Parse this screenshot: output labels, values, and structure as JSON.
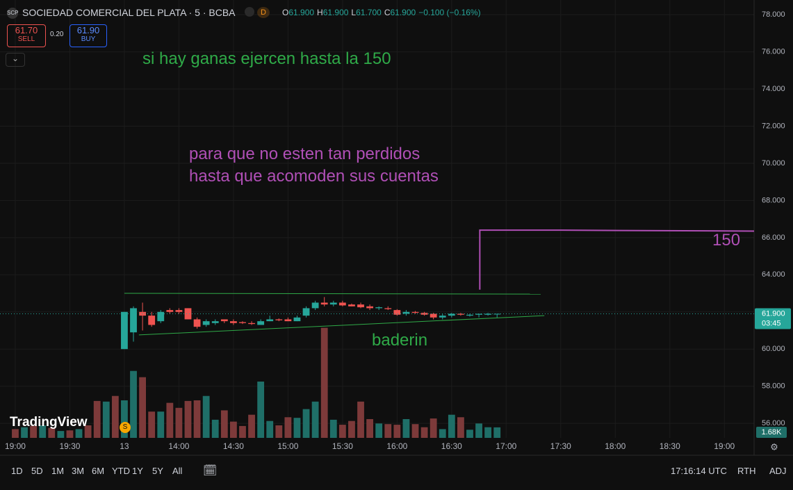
{
  "header": {
    "logo": "SCP",
    "title": "SOCIEDAD COMERCIAL DEL PLATA · 5 · BCBA",
    "badge": "D",
    "ohlc": [
      {
        "label": "O",
        "value": "61.900"
      },
      {
        "label": "H",
        "value": "61.900"
      },
      {
        "label": "L",
        "value": "61.700"
      },
      {
        "label": "C",
        "value": "61.900"
      }
    ],
    "change": "−0.100 (−0.16%)",
    "sell_price": "61.70",
    "sell_label": "SELL",
    "spread": "0.20",
    "buy_price": "61.90",
    "buy_label": "BUY",
    "brand": "TradingView",
    "event": "S"
  },
  "annotations": [
    "si hay ganas ejercen hasta la 150",
    "para que no esten tan perdidos",
    "hasta que acomoden sus cuentas",
    "150",
    "baderin"
  ],
  "toolbar": {
    "ranges": [
      "1D",
      "5D",
      "1M",
      "3M",
      "6M",
      "YTD",
      "1Y",
      "5Y",
      "All"
    ],
    "clock": "17:16:14 UTC",
    "session": "RTH",
    "adjust": "ADJ"
  },
  "chart_data": {
    "type": "candlestick",
    "grid": true,
    "xlim": [
      -1.68,
      81.27
    ],
    "xticks": [
      {
        "value": 0,
        "label": "19:00"
      },
      {
        "value": 6,
        "label": "19:30"
      },
      {
        "value": 12,
        "label": "13"
      },
      {
        "value": 18,
        "label": "14:00"
      },
      {
        "value": 24,
        "label": "14:30"
      },
      {
        "value": 30,
        "label": "15:00"
      },
      {
        "value": 36,
        "label": "15:30"
      },
      {
        "value": 42,
        "label": "16:00"
      },
      {
        "value": 48,
        "label": "16:30"
      },
      {
        "value": 54,
        "label": "17:00"
      },
      {
        "value": 60,
        "label": "17:30"
      },
      {
        "value": 66,
        "label": "18:00"
      },
      {
        "value": 72,
        "label": "18:30"
      },
      {
        "value": 78,
        "label": "19:00"
      }
    ],
    "ylim": [
      55.22,
      78.79
    ],
    "yticks": [
      {
        "value": 78,
        "label": "78.000"
      },
      {
        "value": 76,
        "label": "76.000"
      },
      {
        "value": 74,
        "label": "74.000"
      },
      {
        "value": 72,
        "label": "72.000"
      },
      {
        "value": 70,
        "label": "70.000"
      },
      {
        "value": 68,
        "label": "68.000"
      },
      {
        "value": 66,
        "label": "66.000"
      },
      {
        "value": 64,
        "label": "64.000"
      },
      {
        "value": 62,
        "label": "62.000"
      },
      {
        "value": 60,
        "label": "60.000"
      },
      {
        "value": 58,
        "label": "58.000"
      },
      {
        "value": 56,
        "label": "56.000"
      }
    ],
    "up_color": "#26a69a",
    "down_color": "#ef5350",
    "series": [
      {
        "open": [
          null,
          null,
          null,
          null,
          null,
          null,
          null,
          null,
          null,
          null,
          null,
          null,
          60.0,
          60.9,
          62.0,
          61.8,
          61.5,
          62.1,
          62.1,
          62.2,
          61.6,
          61.3,
          61.4,
          61.6,
          61.5,
          61.45,
          61.4,
          61.3,
          61.5,
          61.6,
          61.6,
          61.5,
          61.8,
          62.2,
          62.5,
          62.4,
          62.5,
          62.4,
          62.4,
          62.3,
          62.2,
          62.2,
          62.1,
          61.9,
          62.0,
          61.95,
          61.9,
          61.7,
          61.8,
          61.9,
          61.8,
          61.85,
          61.85,
          61.9
        ],
        "high": [
          null,
          null,
          null,
          null,
          null,
          null,
          null,
          null,
          null,
          null,
          null,
          null,
          62.0,
          62.3,
          62.5,
          62.0,
          62.1,
          62.2,
          62.2,
          62.2,
          61.7,
          61.6,
          61.6,
          61.6,
          61.6,
          61.5,
          61.5,
          61.6,
          61.8,
          61.65,
          61.7,
          61.8,
          62.3,
          62.6,
          62.8,
          62.6,
          62.6,
          62.45,
          62.5,
          62.4,
          62.3,
          62.3,
          62.15,
          62.1,
          62.05,
          62.0,
          61.95,
          61.9,
          61.95,
          61.95,
          61.9,
          61.9,
          61.95,
          61.9
        ],
        "low": [
          null,
          null,
          null,
          null,
          null,
          null,
          null,
          null,
          null,
          null,
          null,
          null,
          60.0,
          60.4,
          61.0,
          61.2,
          61.4,
          61.9,
          61.9,
          61.6,
          61.1,
          61.2,
          61.3,
          61.4,
          61.3,
          61.35,
          61.3,
          61.3,
          61.5,
          61.5,
          61.5,
          61.5,
          61.7,
          62.1,
          62.3,
          62.3,
          62.3,
          62.3,
          62.2,
          62.1,
          62.1,
          62.1,
          61.8,
          61.8,
          61.9,
          61.8,
          61.6,
          61.6,
          61.7,
          61.8,
          61.75,
          61.7,
          61.8,
          61.7
        ],
        "close": [
          null,
          null,
          null,
          null,
          null,
          null,
          null,
          null,
          null,
          null,
          null,
          null,
          62.0,
          62.2,
          61.8,
          61.3,
          62.0,
          62.0,
          62.0,
          61.6,
          61.2,
          61.5,
          61.5,
          61.5,
          61.4,
          61.4,
          61.35,
          61.5,
          61.6,
          61.55,
          61.5,
          61.7,
          62.2,
          62.5,
          62.4,
          62.5,
          62.35,
          62.3,
          62.25,
          62.2,
          62.25,
          62.15,
          61.85,
          62.0,
          61.95,
          61.85,
          61.7,
          61.8,
          61.9,
          61.85,
          61.85,
          61.9,
          61.9,
          61.9
        ]
      }
    ],
    "last_price": 61.9,
    "last_price_label": "61.900",
    "countdown": "03:45",
    "last_price_color": "#26a69a",
    "volume": {
      "vlim": [
        0,
        70
      ],
      "up_color": "#1f6f68",
      "down_color": "#7d3a3a",
      "last_label": "1.68K",
      "values": [
        1.4,
        1.7,
        1.9,
        2.0,
        1.6,
        1.1,
        1.2,
        1.4,
        2.0,
        5.9,
        5.8,
        6.7,
        6.0,
        10.7,
        9.7,
        4.2,
        4.2,
        5.6,
        4.8,
        5.9,
        6.0,
        6.7,
        2.9,
        4.4,
        2.6,
        1.9,
        3.7,
        9.0,
        2.7,
        2.0,
        3.3,
        3.2,
        4.6,
        5.8,
        17.6,
        2.9,
        2.1,
        2.7,
        5.8,
        3.0,
        2.3,
        2.2,
        2.1,
        3.0,
        2.2,
        1.7,
        3.1,
        1.4,
        3.7,
        3.3,
        1.3,
        2.3,
        1.7,
        1.68
      ],
      "directions": [
        "down",
        "up",
        "down",
        "up",
        "down",
        "up",
        "down",
        "up",
        "down",
        "down",
        "up",
        "down",
        "up",
        "up",
        "down",
        "down",
        "up",
        "down",
        "down",
        "down",
        "down",
        "up",
        "up",
        "down",
        "down",
        "down",
        "down",
        "up",
        "up",
        "down",
        "down",
        "up",
        "up",
        "up",
        "down",
        "up",
        "down",
        "down",
        "down",
        "down",
        "up",
        "down",
        "down",
        "up",
        "down",
        "down",
        "down",
        "up",
        "up",
        "down",
        "up",
        "up",
        "up",
        "up"
      ]
    },
    "lines": [
      {
        "color": "#2faa48",
        "x": [
          12.0,
          57.8
        ],
        "y": [
          63.0,
          62.96
        ]
      },
      {
        "color": "#2faa48",
        "x": [
          13.6,
          58.2
        ],
        "y": [
          60.76,
          61.8
        ]
      },
      {
        "color": "#b04fb6",
        "x": [
          51.1,
          51.1,
          60.0,
          81.27
        ],
        "y": [
          63.2,
          66.4,
          66.4,
          66.35
        ]
      }
    ]
  }
}
